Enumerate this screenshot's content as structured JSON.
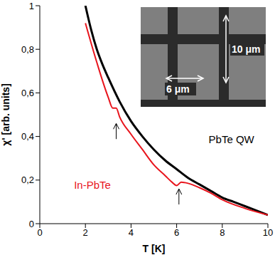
{
  "chart_data": {
    "type": "line",
    "x_label": "T [K]",
    "y_label": "χ' [arb. units]",
    "xlim": [
      0,
      10
    ],
    "xticks": [
      0,
      2,
      4,
      6,
      8,
      10
    ],
    "ylim": [
      0,
      1
    ],
    "yticks": [
      0,
      {
        "value": 0.2,
        "label": "0,2"
      },
      {
        "value": 0.4,
        "label": "0,4"
      },
      {
        "value": 0.6,
        "label": "0,6"
      },
      {
        "value": 0.8,
        "label": "0,8"
      },
      1
    ],
    "grid": false,
    "series": [
      {
        "name": "PbTe QW",
        "color": "#000000",
        "x": [
          2,
          2.25,
          2.5,
          2.75,
          3,
          3.5,
          4,
          4.5,
          5,
          5.5,
          6,
          6.5,
          7,
          7.5,
          8,
          8.5,
          9,
          9.5,
          10
        ],
        "values": [
          1.0,
          0.89,
          0.8,
          0.73,
          0.67,
          0.56,
          0.47,
          0.4,
          0.34,
          0.29,
          0.25,
          0.21,
          0.18,
          0.15,
          0.12,
          0.1,
          0.08,
          0.06,
          0.04
        ]
      },
      {
        "name": "In-PbTe",
        "color": "#e8141c",
        "x": [
          2,
          2.5,
          3,
          3.2,
          3.35,
          3.5,
          4,
          4.5,
          5,
          5.5,
          5.8,
          6,
          6.2,
          6.5,
          7,
          7.5,
          8,
          9,
          10
        ],
        "values": [
          0.92,
          0.74,
          0.58,
          0.53,
          0.53,
          0.49,
          0.41,
          0.34,
          0.27,
          0.22,
          0.19,
          0.175,
          0.19,
          0.185,
          0.165,
          0.14,
          0.11,
          0.07,
          0.04
        ]
      }
    ],
    "annotations": [
      {
        "text": "PbTe QW",
        "x": 7.4,
        "y": 0.37,
        "color": "#000000"
      },
      {
        "text": "In-PbTe",
        "x": 1.5,
        "y": 0.16,
        "color": "#e8141c"
      }
    ],
    "arrows": [
      {
        "x": 3.35,
        "y": 0.46
      },
      {
        "x": 6.1,
        "y": 0.16
      }
    ],
    "inset": {
      "labels": [
        "10 μm",
        "6 μm"
      ]
    }
  }
}
